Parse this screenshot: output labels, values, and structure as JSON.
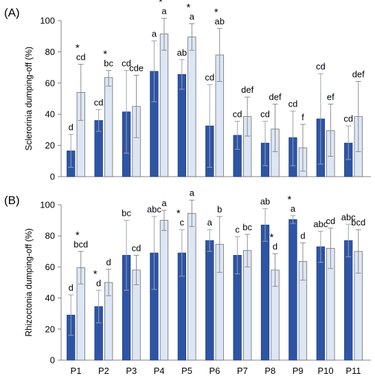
{
  "chart_data": [
    {
      "type": "bar",
      "panel_label": "(A)",
      "ylabel": "Sclerorinia dumping-off (%)",
      "ylim": [
        0,
        100
      ],
      "yticks": [
        0,
        20,
        40,
        60,
        80,
        100
      ],
      "categories": [
        "P1",
        "P2",
        "P3",
        "P4",
        "P5",
        "P6",
        "P7",
        "P8",
        "P9",
        "P10",
        "P11"
      ],
      "series": [
        {
          "color": "#2e54a4",
          "values": [
            16.5,
            36,
            41.5,
            67.5,
            65.5,
            32.5,
            26.5,
            21.5,
            25,
            37,
            21.5
          ],
          "err_high": [
            27,
            43,
            68,
            87,
            75,
            59,
            35.5,
            35.5,
            42,
            66,
            32.5
          ],
          "err_low": [
            6,
            29,
            15,
            48,
            56,
            6,
            17.5,
            7,
            7,
            8,
            11
          ],
          "letters": [
            "d",
            "cd",
            "cd",
            "a",
            "ab",
            "cd",
            "cd",
            "cd",
            "cd",
            "cd",
            "cd"
          ],
          "stars": [
            false,
            false,
            false,
            false,
            false,
            false,
            false,
            false,
            false,
            false,
            false
          ]
        },
        {
          "color": "#dde6f5",
          "values": [
            54,
            63.5,
            45,
            91.5,
            89.5,
            78,
            38.5,
            30.5,
            18.5,
            29.5,
            38.5
          ],
          "err_high": [
            72,
            68,
            65,
            101.5,
            98,
            95,
            51,
            46.5,
            33.5,
            46.5,
            61
          ],
          "err_low": [
            36,
            58,
            25,
            81,
            81,
            61,
            26,
            16,
            3.5,
            13,
            16
          ],
          "letters": [
            "cd",
            "bc",
            "cde",
            "a",
            "a",
            "ab",
            "def",
            "def",
            "f",
            "ef",
            "def"
          ],
          "stars": [
            true,
            true,
            false,
            true,
            true,
            true,
            false,
            false,
            false,
            false,
            false
          ]
        }
      ]
    },
    {
      "type": "bar",
      "panel_label": "(B)",
      "ylabel": "Rhizoctonia dumping-off (%)",
      "ylim": [
        0,
        100
      ],
      "yticks": [
        0,
        20,
        40,
        60,
        80,
        100
      ],
      "categories": [
        "P1",
        "P2",
        "P3",
        "P4",
        "P5",
        "P6",
        "P7",
        "P8",
        "P9",
        "P10",
        "P11"
      ],
      "series": [
        {
          "color": "#2e54a4",
          "values": [
            29,
            34.5,
            67.5,
            69,
            69,
            77,
            67.5,
            87,
            90.5,
            73,
            77
          ],
          "err_high": [
            42,
            45,
            90,
            92.5,
            84,
            84,
            79.5,
            97.5,
            93,
            83,
            87.5
          ],
          "err_low": [
            16,
            24,
            45,
            45.5,
            54,
            70,
            55.5,
            76.5,
            88,
            63,
            66.5
          ],
          "letters": [
            "d",
            "d",
            "bc",
            "abc",
            "c",
            "a",
            "c",
            "ab",
            "a",
            "abc",
            "abc"
          ],
          "stars": [
            false,
            true,
            false,
            false,
            true,
            false,
            false,
            false,
            true,
            false,
            false
          ]
        },
        {
          "color": "#dde6f5",
          "values": [
            59.5,
            50,
            58,
            90,
            94.5,
            74.5,
            70.5,
            58,
            63.5,
            72,
            70
          ],
          "err_high": [
            70,
            58.5,
            67.5,
            96.5,
            103,
            92.5,
            81,
            68.5,
            75.5,
            85,
            84
          ],
          "err_low": [
            49,
            41.5,
            48.5,
            83.5,
            86,
            56.5,
            60,
            47.5,
            51.5,
            59,
            56
          ],
          "letters": [
            "bcd",
            "d",
            "cd",
            "a",
            "a",
            "b",
            "bc",
            "d",
            "d",
            "cd",
            "bcd"
          ],
          "stars": [
            true,
            false,
            false,
            false,
            false,
            false,
            false,
            true,
            false,
            false,
            false
          ]
        }
      ]
    }
  ]
}
